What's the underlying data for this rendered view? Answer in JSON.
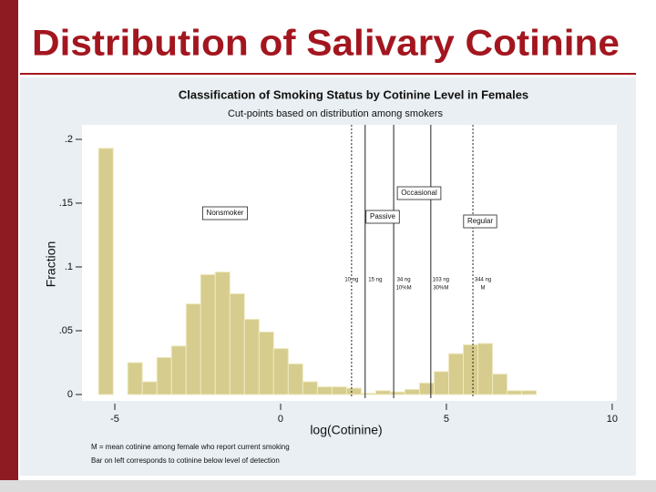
{
  "chart_data": {
    "type": "histogram",
    "slide_title": "Distribution of Salivary Cotinine",
    "title": "Classification of Smoking Status by Cotinine Level in Females",
    "subtitle": "Cut-points based on distribution among smokers",
    "x_label": "log(Cotinine)",
    "y_label": "Fraction",
    "bins": [
      -5.49,
      -5.05,
      -4.61,
      -4.17,
      -3.73,
      -3.29,
      -2.85,
      -2.41,
      -1.97,
      -1.53,
      -1.09,
      -0.65,
      -0.21,
      0.23,
      0.67,
      1.11,
      1.55,
      1.99,
      2.43,
      2.87,
      3.31,
      3.75,
      4.19,
      4.63,
      5.07,
      5.51,
      5.95,
      6.39,
      6.83,
      7.27,
      7.71
    ],
    "values": [
      0.193,
      0,
      0.025,
      0.01,
      0.029,
      0.038,
      0.071,
      0.094,
      0.096,
      0.079,
      0.059,
      0.049,
      0.036,
      0.024,
      0.01,
      0.006,
      0.006,
      0.005,
      0.001,
      0.003,
      0.002,
      0.004,
      0.009,
      0.018,
      0.032,
      0.039,
      0.04,
      0.016,
      0.003,
      0.003
    ],
    "color": "#d6cc8d",
    "xlim": [
      -5.99,
      10.14
    ],
    "ylim": [
      -0.005,
      0.2114
    ],
    "xticks": [
      -5,
      0,
      5,
      10
    ],
    "yticks": [
      {
        "value": 0,
        "label": "0"
      },
      {
        "value": 0.05,
        "label": ".05"
      },
      {
        "value": 0.1,
        "label": ".1"
      },
      {
        "value": 0.15,
        "label": ".15"
      },
      {
        "value": 0.2,
        "label": ".2"
      }
    ],
    "cut_lines": [
      {
        "x": 2.14,
        "style": "dashed",
        "label": [
          "10 ng"
        ]
      },
      {
        "x": 2.55,
        "style": "solid",
        "label": [
          "15 ng"
        ]
      },
      {
        "x": 3.41,
        "style": "solid",
        "label": [
          "34 ng",
          "10%M"
        ]
      },
      {
        "x": 4.53,
        "style": "solid",
        "label": [
          "103 ng",
          "30%M"
        ]
      },
      {
        "x": 5.8,
        "style": "dashed",
        "label": [
          "344 ng",
          "M"
        ]
      }
    ],
    "annotations": [
      "Nonsmoker",
      "Passive",
      "Occasional",
      "Regular"
    ],
    "notes": [
      "M = mean cotinine among female who report current smoking",
      "Bar on left corresponds to cotinine below level of detection"
    ]
  }
}
